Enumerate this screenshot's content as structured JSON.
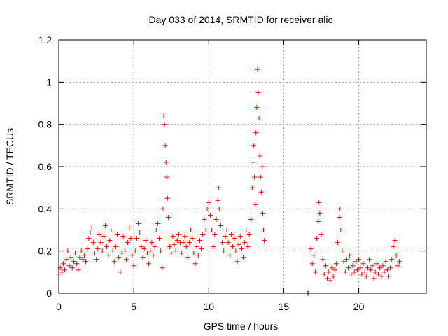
{
  "chart_data": {
    "type": "scatter",
    "title": "Day 033 of 2014, SRMTID for receiver alic",
    "xlabel": "GPS time / hours",
    "ylabel": "SRMTID / TECUs",
    "xlim": [
      0,
      24.5
    ],
    "ylim": [
      0,
      1.2
    ],
    "x_ticks": [
      0,
      5,
      10,
      15,
      20
    ],
    "x_tick_labels": [
      "0",
      "5",
      "10",
      "15",
      "20"
    ],
    "y_ticks": [
      0,
      0.2,
      0.4,
      0.6,
      0.8,
      1.0,
      1.2
    ],
    "y_tick_labels": [
      "0",
      "0.2",
      "0.4",
      "0.6",
      "0.8",
      "1",
      "1.2"
    ],
    "grid": true,
    "marker": "+",
    "color": "#ff0000",
    "series": [
      {
        "name": "SRMTID",
        "points": [
          [
            0.0,
            0.09
          ],
          [
            0.1,
            0.12
          ],
          [
            0.2,
            0.1
          ],
          [
            0.3,
            0.14
          ],
          [
            0.4,
            0.11
          ],
          [
            0.5,
            0.16
          ],
          [
            0.6,
            0.2
          ],
          [
            0.7,
            0.13
          ],
          [
            0.8,
            0.17
          ],
          [
            0.9,
            0.12
          ],
          [
            1.0,
            0.15
          ],
          [
            1.1,
            0.19
          ],
          [
            1.2,
            0.14
          ],
          [
            1.3,
            0.11
          ],
          [
            1.4,
            0.17
          ],
          [
            1.5,
            0.2
          ],
          [
            1.6,
            0.16
          ],
          [
            1.7,
            0.18
          ],
          [
            1.8,
            0.15
          ],
          [
            1.9,
            0.21
          ],
          [
            2.0,
            0.26
          ],
          [
            2.1,
            0.29
          ],
          [
            2.2,
            0.31
          ],
          [
            2.3,
            0.24
          ],
          [
            2.4,
            0.19
          ],
          [
            2.5,
            0.16
          ],
          [
            2.6,
            0.21
          ],
          [
            2.7,
            0.28
          ],
          [
            2.8,
            0.24
          ],
          [
            2.9,
            0.2
          ],
          [
            3.0,
            0.27
          ],
          [
            3.1,
            0.32
          ],
          [
            3.2,
            0.22
          ],
          [
            3.3,
            0.18
          ],
          [
            3.4,
            0.25
          ],
          [
            3.5,
            0.3
          ],
          [
            3.6,
            0.2
          ],
          [
            3.7,
            0.15
          ],
          [
            3.8,
            0.22
          ],
          [
            3.9,
            0.28
          ],
          [
            4.0,
            0.17
          ],
          [
            4.1,
            0.1
          ],
          [
            4.2,
            0.19
          ],
          [
            4.3,
            0.27
          ],
          [
            4.4,
            0.2
          ],
          [
            4.5,
            0.16
          ],
          [
            4.6,
            0.24
          ],
          [
            4.7,
            0.31
          ],
          [
            4.8,
            0.26
          ],
          [
            4.9,
            0.18
          ],
          [
            5.0,
            0.13
          ],
          [
            5.1,
            0.2
          ],
          [
            5.2,
            0.26
          ],
          [
            5.3,
            0.33
          ],
          [
            5.4,
            0.29
          ],
          [
            5.5,
            0.22
          ],
          [
            5.6,
            0.17
          ],
          [
            5.7,
            0.21
          ],
          [
            5.8,
            0.25
          ],
          [
            5.9,
            0.19
          ],
          [
            6.0,
            0.14
          ],
          [
            6.1,
            0.2
          ],
          [
            6.2,
            0.24
          ],
          [
            6.3,
            0.18
          ],
          [
            6.4,
            0.22
          ],
          [
            6.5,
            0.3
          ],
          [
            6.6,
            0.33
          ],
          [
            6.7,
            0.26
          ],
          [
            6.8,
            0.2
          ],
          [
            6.9,
            0.12
          ],
          [
            6.95,
            0.4
          ],
          [
            7.0,
            0.84
          ],
          [
            7.05,
            0.8
          ],
          [
            7.1,
            0.7
          ],
          [
            7.15,
            0.62
          ],
          [
            7.2,
            0.55
          ],
          [
            7.25,
            0.45
          ],
          [
            7.3,
            0.36
          ],
          [
            7.35,
            0.29
          ],
          [
            7.4,
            0.22
          ],
          [
            7.5,
            0.19
          ],
          [
            7.6,
            0.27
          ],
          [
            7.7,
            0.23
          ],
          [
            7.8,
            0.2
          ],
          [
            7.9,
            0.25
          ],
          [
            8.0,
            0.28
          ],
          [
            8.1,
            0.24
          ],
          [
            8.2,
            0.19
          ],
          [
            8.3,
            0.24
          ],
          [
            8.4,
            0.27
          ],
          [
            8.5,
            0.22
          ],
          [
            8.6,
            0.17
          ],
          [
            8.7,
            0.24
          ],
          [
            8.8,
            0.3
          ],
          [
            8.9,
            0.26
          ],
          [
            9.0,
            0.19
          ],
          [
            9.1,
            0.14
          ],
          [
            9.2,
            0.22
          ],
          [
            9.3,
            0.18
          ],
          [
            9.4,
            0.25
          ],
          [
            9.5,
            0.21
          ],
          [
            9.6,
            0.28
          ],
          [
            9.7,
            0.35
          ],
          [
            9.8,
            0.3
          ],
          [
            9.9,
            0.4
          ],
          [
            10.0,
            0.43
          ],
          [
            10.1,
            0.37
          ],
          [
            10.2,
            0.3
          ],
          [
            10.3,
            0.22
          ],
          [
            10.4,
            0.28
          ],
          [
            10.5,
            0.35
          ],
          [
            10.6,
            0.44
          ],
          [
            10.65,
            0.5
          ],
          [
            10.7,
            0.4
          ],
          [
            10.8,
            0.32
          ],
          [
            10.9,
            0.24
          ],
          [
            11.0,
            0.2
          ],
          [
            11.1,
            0.27
          ],
          [
            11.2,
            0.3
          ],
          [
            11.3,
            0.24
          ],
          [
            11.4,
            0.18
          ],
          [
            11.5,
            0.28
          ],
          [
            11.6,
            0.22
          ],
          [
            11.7,
            0.26
          ],
          [
            11.8,
            0.2
          ],
          [
            11.9,
            0.15
          ],
          [
            12.0,
            0.23
          ],
          [
            12.1,
            0.27
          ],
          [
            12.2,
            0.21
          ],
          [
            12.3,
            0.17
          ],
          [
            12.4,
            0.24
          ],
          [
            12.5,
            0.3
          ],
          [
            12.6,
            0.22
          ],
          [
            12.7,
            0.28
          ],
          [
            12.8,
            0.35
          ],
          [
            12.9,
            0.5
          ],
          [
            12.95,
            0.62
          ],
          [
            13.0,
            0.7
          ],
          [
            13.05,
            0.55
          ],
          [
            13.1,
            0.42
          ],
          [
            13.15,
            0.76
          ],
          [
            13.2,
            0.88
          ],
          [
            13.25,
            1.06
          ],
          [
            13.3,
            0.95
          ],
          [
            13.35,
            0.83
          ],
          [
            13.4,
            0.65
          ],
          [
            13.45,
            0.55
          ],
          [
            13.5,
            0.48
          ],
          [
            13.55,
            0.6
          ],
          [
            13.6,
            0.38
          ],
          [
            13.65,
            0.3
          ],
          [
            13.7,
            0.25
          ],
          [
            16.6,
            0.0
          ],
          [
            16.65,
            0.0
          ],
          [
            16.8,
            0.21
          ],
          [
            16.9,
            0.14
          ],
          [
            17.0,
            0.18
          ],
          [
            17.1,
            0.1
          ],
          [
            17.2,
            0.26
          ],
          [
            17.3,
            0.34
          ],
          [
            17.35,
            0.43
          ],
          [
            17.4,
            0.38
          ],
          [
            17.5,
            0.28
          ],
          [
            17.6,
            0.16
          ],
          [
            17.7,
            0.09
          ],
          [
            17.8,
            0.13
          ],
          [
            17.9,
            0.07
          ],
          [
            18.0,
            0.1
          ],
          [
            18.1,
            0.06
          ],
          [
            18.2,
            0.12
          ],
          [
            18.3,
            0.08
          ],
          [
            18.4,
            0.11
          ],
          [
            18.5,
            0.14
          ],
          [
            18.6,
            0.24
          ],
          [
            18.7,
            0.36
          ],
          [
            18.75,
            0.4
          ],
          [
            18.8,
            0.3
          ],
          [
            18.9,
            0.2
          ],
          [
            19.0,
            0.15
          ],
          [
            19.1,
            0.1
          ],
          [
            19.2,
            0.16
          ],
          [
            19.3,
            0.12
          ],
          [
            19.4,
            0.18
          ],
          [
            19.5,
            0.09
          ],
          [
            19.6,
            0.13
          ],
          [
            19.7,
            0.1
          ],
          [
            19.8,
            0.15
          ],
          [
            19.9,
            0.11
          ],
          [
            20.0,
            0.16
          ],
          [
            20.1,
            0.12
          ],
          [
            20.2,
            0.09
          ],
          [
            20.3,
            0.14
          ],
          [
            20.4,
            0.1
          ],
          [
            20.5,
            0.08
          ],
          [
            20.6,
            0.12
          ],
          [
            20.7,
            0.16
          ],
          [
            20.8,
            0.11
          ],
          [
            20.9,
            0.13
          ],
          [
            21.0,
            0.07
          ],
          [
            21.1,
            0.1
          ],
          [
            21.2,
            0.14
          ],
          [
            21.3,
            0.09
          ],
          [
            21.4,
            0.12
          ],
          [
            21.5,
            0.08
          ],
          [
            21.6,
            0.13
          ],
          [
            21.7,
            0.1
          ],
          [
            21.8,
            0.15
          ],
          [
            21.9,
            0.11
          ],
          [
            22.0,
            0.08
          ],
          [
            22.1,
            0.12
          ],
          [
            22.2,
            0.16
          ],
          [
            22.3,
            0.22
          ],
          [
            22.4,
            0.25
          ],
          [
            22.5,
            0.18
          ],
          [
            22.6,
            0.13
          ],
          [
            22.7,
            0.15
          ]
        ]
      }
    ]
  }
}
